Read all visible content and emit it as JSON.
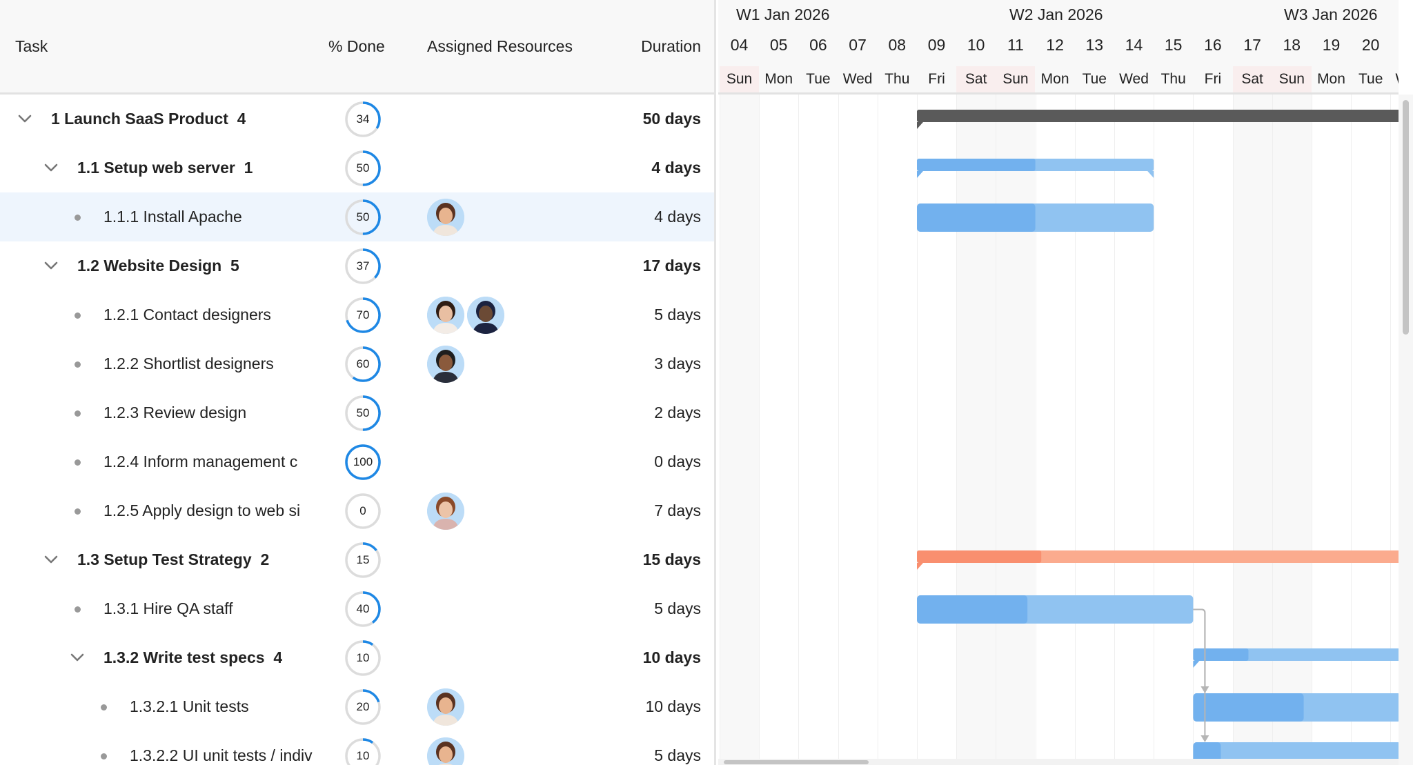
{
  "grid": {
    "columns": {
      "task": "Task",
      "percent_done": "% Done",
      "resources": "Assigned Resources",
      "duration": "Duration"
    },
    "rows": [
      {
        "wbs_name": "1 Launch SaaS Product",
        "children_count": "4",
        "level": 0,
        "parent": true,
        "percent": 34,
        "resources": [],
        "duration": "50 days",
        "bar": {
          "start": "2026-01-09",
          "end": "2026-03-20",
          "color": "dark"
        }
      },
      {
        "wbs_name": "1.1 Setup web server",
        "children_count": "1",
        "level": 1,
        "parent": true,
        "percent": 50,
        "resources": [],
        "duration": "4 days",
        "bar": {
          "start": "2026-01-09",
          "end": "2026-01-15",
          "color": "blue"
        }
      },
      {
        "wbs_name": "1.1.1 Install Apache",
        "children_count": "",
        "level": 2,
        "parent": false,
        "selected": true,
        "percent": 50,
        "resources": [
          "woman-short-hair"
        ],
        "duration": "4 days",
        "bar": {
          "start": "2026-01-09",
          "end": "2026-01-15",
          "color": "blue"
        }
      },
      {
        "wbs_name": "1.2 Website Design",
        "children_count": "5",
        "level": 1,
        "parent": true,
        "percent": 37,
        "resources": [],
        "duration": "17 days"
      },
      {
        "wbs_name": "1.2.1 Contact designers",
        "children_count": "",
        "level": 2,
        "parent": false,
        "percent": 70,
        "resources": [
          "woman-long-hair",
          "man-beret"
        ],
        "duration": "5 days"
      },
      {
        "wbs_name": "1.2.2 Shortlist designers",
        "children_count": "",
        "level": 2,
        "parent": false,
        "percent": 60,
        "resources": [
          "man-beard"
        ],
        "duration": "3 days"
      },
      {
        "wbs_name": "1.2.3 Review design",
        "children_count": "",
        "level": 2,
        "parent": false,
        "percent": 50,
        "resources": [],
        "duration": "2 days"
      },
      {
        "wbs_name": "1.2.4 Inform management c",
        "children_count": "",
        "level": 2,
        "parent": false,
        "percent": 100,
        "resources": [],
        "duration": "0 days"
      },
      {
        "wbs_name": "1.2.5 Apply design to web si",
        "children_count": "",
        "level": 2,
        "parent": false,
        "percent": 0,
        "resources": [
          "woman-red-hair"
        ],
        "duration": "7 days"
      },
      {
        "wbs_name": "1.3 Setup Test Strategy",
        "children_count": "2",
        "level": 1,
        "parent": true,
        "percent": 15,
        "resources": [],
        "duration": "15 days",
        "bar": {
          "start": "2026-01-09",
          "end": "2026-01-30",
          "color": "orange"
        }
      },
      {
        "wbs_name": "1.3.1 Hire QA staff",
        "children_count": "",
        "level": 2,
        "parent": false,
        "percent": 40,
        "resources": [],
        "duration": "5 days",
        "bar": {
          "start": "2026-01-09",
          "end": "2026-01-16",
          "color": "blue"
        }
      },
      {
        "wbs_name": "1.3.2 Write test specs",
        "children_count": "4",
        "level": 2,
        "parent": true,
        "percent": 10,
        "resources": [],
        "duration": "10 days",
        "bar": {
          "start": "2026-01-16",
          "end": "2026-01-30",
          "color": "blue"
        }
      },
      {
        "wbs_name": "1.3.2.1 Unit tests",
        "children_count": "",
        "level": 3,
        "parent": false,
        "percent": 20,
        "resources": [
          "woman-short-hair"
        ],
        "duration": "10 days",
        "bar": {
          "start": "2026-01-16",
          "end": "2026-01-30",
          "color": "blue"
        }
      },
      {
        "wbs_name": "1.3.2.2 UI unit tests / indiv",
        "children_count": "",
        "level": 3,
        "parent": false,
        "percent": 10,
        "resources": [
          "woman-short-hair"
        ],
        "duration": "5 days",
        "bar": {
          "start": "2026-01-16",
          "end": "2026-01-23",
          "color": "blue"
        }
      }
    ]
  },
  "timeline": {
    "weeks": [
      "W1 Jan 2026",
      "W2 Jan 2026",
      "W3 Jan 2026"
    ],
    "days": [
      {
        "num": "04",
        "name": "Sun",
        "weekend": true
      },
      {
        "num": "05",
        "name": "Mon"
      },
      {
        "num": "06",
        "name": "Tue"
      },
      {
        "num": "07",
        "name": "Wed"
      },
      {
        "num": "08",
        "name": "Thu"
      },
      {
        "num": "09",
        "name": "Fri"
      },
      {
        "num": "10",
        "name": "Sat",
        "weekend": true
      },
      {
        "num": "11",
        "name": "Sun",
        "weekend": true
      },
      {
        "num": "12",
        "name": "Mon"
      },
      {
        "num": "13",
        "name": "Tue"
      },
      {
        "num": "14",
        "name": "Wed"
      },
      {
        "num": "15",
        "name": "Thu"
      },
      {
        "num": "16",
        "name": "Fri"
      },
      {
        "num": "17",
        "name": "Sat",
        "weekend": true
      },
      {
        "num": "18",
        "name": "Sun",
        "weekend": true
      },
      {
        "num": "19",
        "name": "Mon"
      },
      {
        "num": "20",
        "name": "Tue"
      },
      {
        "num": null,
        "name": "Wed"
      }
    ],
    "dependencies": [
      {
        "from": 10,
        "to": 12
      },
      {
        "from": 10,
        "to": 13
      }
    ]
  },
  "colors": {
    "accent": "#1e88e5",
    "dark_bar": "#5a5a5a",
    "blue_done": "#72b1ee",
    "blue_rest": "#90c3f1",
    "orange_done": "#f98f6f",
    "orange_rest": "#fbab8e",
    "selected_row": "#eef5fd"
  }
}
